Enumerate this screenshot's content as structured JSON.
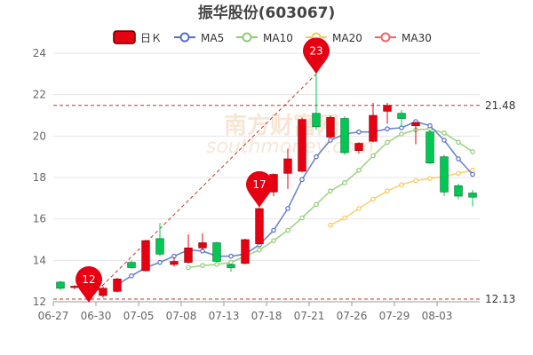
{
  "title": "振华股份(603067)",
  "legend": [
    {
      "key": "kline",
      "label": "日Ｋ",
      "color": "#e60012"
    },
    {
      "key": "ma5",
      "label": "MA5",
      "color": "#5470c6"
    },
    {
      "key": "ma10",
      "label": "MA10",
      "color": "#91cc75"
    },
    {
      "key": "ma20",
      "label": "MA20",
      "color": "#fac858"
    },
    {
      "key": "ma30",
      "label": "MA30",
      "color": "#ee6666"
    }
  ],
  "watermark": {
    "cn": "南方财富网",
    "en": "southmoney.com"
  },
  "colors": {
    "up": "#e60012",
    "down": "#00c853",
    "grid": "#e6e6e6",
    "marker": "#e60012",
    "level_line": "#c0392b"
  },
  "chart_data": {
    "type": "candlestick",
    "title": "振华股份(603067)",
    "ylim": [
      12,
      24
    ],
    "yticks": [
      12,
      14,
      16,
      18,
      20,
      22,
      24
    ],
    "xtick_labels": [
      {
        "index": 0,
        "label": "06-27"
      },
      {
        "index": 3,
        "label": "06-30"
      },
      {
        "index": 6,
        "label": "07-05"
      },
      {
        "index": 9,
        "label": "07-08"
      },
      {
        "index": 12,
        "label": "07-13"
      },
      {
        "index": 15,
        "label": "07-18"
      },
      {
        "index": 18,
        "label": "07-21"
      },
      {
        "index": 21,
        "label": "07-26"
      },
      {
        "index": 24,
        "label": "07-29"
      },
      {
        "index": 27,
        "label": "08-03"
      }
    ],
    "candles": [
      {
        "o": 12.95,
        "c": 12.65,
        "h": 13.0,
        "l": 12.55
      },
      {
        "o": 12.7,
        "c": 12.75,
        "h": 12.8,
        "l": 12.6
      },
      {
        "o": 12.4,
        "c": 12.3,
        "h": 12.5,
        "l": 12.13
      },
      {
        "o": 12.3,
        "c": 12.65,
        "h": 12.75,
        "l": 12.2
      },
      {
        "o": 12.5,
        "c": 13.1,
        "h": 13.15,
        "l": 12.45
      },
      {
        "o": 13.9,
        "c": 13.65,
        "h": 14.0,
        "l": 13.6
      },
      {
        "o": 13.5,
        "c": 14.95,
        "h": 15.0,
        "l": 13.45
      },
      {
        "o": 15.05,
        "c": 14.3,
        "h": 15.8,
        "l": 14.2
      },
      {
        "o": 13.8,
        "c": 13.95,
        "h": 14.15,
        "l": 13.7
      },
      {
        "o": 13.9,
        "c": 14.6,
        "h": 15.25,
        "l": 13.85
      },
      {
        "o": 14.6,
        "c": 14.85,
        "h": 15.3,
        "l": 14.5
      },
      {
        "o": 14.85,
        "c": 13.95,
        "h": 14.9,
        "l": 13.9
      },
      {
        "o": 13.8,
        "c": 13.65,
        "h": 13.85,
        "l": 13.45
      },
      {
        "o": 13.85,
        "c": 15.0,
        "h": 15.05,
        "l": 13.8
      },
      {
        "o": 14.8,
        "c": 16.5,
        "h": 16.55,
        "l": 14.75
      },
      {
        "o": 17.3,
        "c": 18.15,
        "h": 18.2,
        "l": 17.1
      },
      {
        "o": 18.2,
        "c": 18.9,
        "h": 19.4,
        "l": 17.45
      },
      {
        "o": 18.3,
        "c": 20.8,
        "h": 20.9,
        "l": 18.25
      },
      {
        "o": 21.1,
        "c": 20.45,
        "h": 23.0,
        "l": 20.3
      },
      {
        "o": 19.95,
        "c": 20.9,
        "h": 21.0,
        "l": 19.9
      },
      {
        "o": 20.85,
        "c": 19.2,
        "h": 20.95,
        "l": 19.1
      },
      {
        "o": 19.3,
        "c": 19.65,
        "h": 19.7,
        "l": 19.15
      },
      {
        "o": 19.75,
        "c": 21.0,
        "h": 21.6,
        "l": 19.7
      },
      {
        "o": 21.2,
        "c": 21.48,
        "h": 21.6,
        "l": 20.6
      },
      {
        "o": 21.1,
        "c": 20.85,
        "h": 21.25,
        "l": 20.45
      },
      {
        "o": 20.5,
        "c": 20.65,
        "h": 20.7,
        "l": 19.6
      },
      {
        "o": 20.2,
        "c": 18.7,
        "h": 20.3,
        "l": 18.65
      },
      {
        "o": 19.0,
        "c": 17.3,
        "h": 19.1,
        "l": 17.1
      },
      {
        "o": 17.6,
        "c": 17.1,
        "h": 17.7,
        "l": 16.95
      },
      {
        "o": 17.25,
        "c": 17.05,
        "h": 17.4,
        "l": 16.6
      }
    ],
    "ma5": [
      null,
      null,
      null,
      null,
      12.82,
      13.25,
      13.65,
      13.9,
      14.2,
      14.5,
      14.45,
      14.2,
      14.2,
      14.3,
      14.75,
      15.45,
      16.5,
      17.9,
      19.0,
      19.8,
      20.1,
      20.2,
      20.2,
      20.35,
      20.4,
      20.7,
      20.5,
      19.8,
      18.9,
      18.15
    ],
    "ma10": [
      null,
      null,
      null,
      null,
      null,
      null,
      null,
      null,
      null,
      13.65,
      13.75,
      13.8,
      13.9,
      14.2,
      14.5,
      14.95,
      15.45,
      16.05,
      16.7,
      17.35,
      17.75,
      18.35,
      19.05,
      19.7,
      20.1,
      20.3,
      20.35,
      20.15,
      19.7,
      19.25
    ],
    "ma20": [
      null,
      null,
      null,
      null,
      null,
      null,
      null,
      null,
      null,
      null,
      null,
      null,
      null,
      null,
      null,
      null,
      null,
      null,
      null,
      15.7,
      16.05,
      16.5,
      16.95,
      17.35,
      17.65,
      17.85,
      17.95,
      18.05,
      18.2,
      18.35
    ],
    "ma30": [],
    "annotations": [
      {
        "type": "max",
        "index": 18,
        "value": 23.0,
        "label": "23"
      },
      {
        "type": "min",
        "index": 2,
        "value": 12.13,
        "label": "12"
      },
      {
        "type": "point",
        "index": 14,
        "value": 16.5,
        "label": "17"
      }
    ],
    "levels": [
      {
        "value": 21.48,
        "label": "21.48"
      },
      {
        "value": 12.13,
        "label": "12.13"
      }
    ],
    "trendline": {
      "from_index": 2,
      "from_value": 12.13,
      "to_index": 18,
      "to_value": 23.0
    }
  }
}
